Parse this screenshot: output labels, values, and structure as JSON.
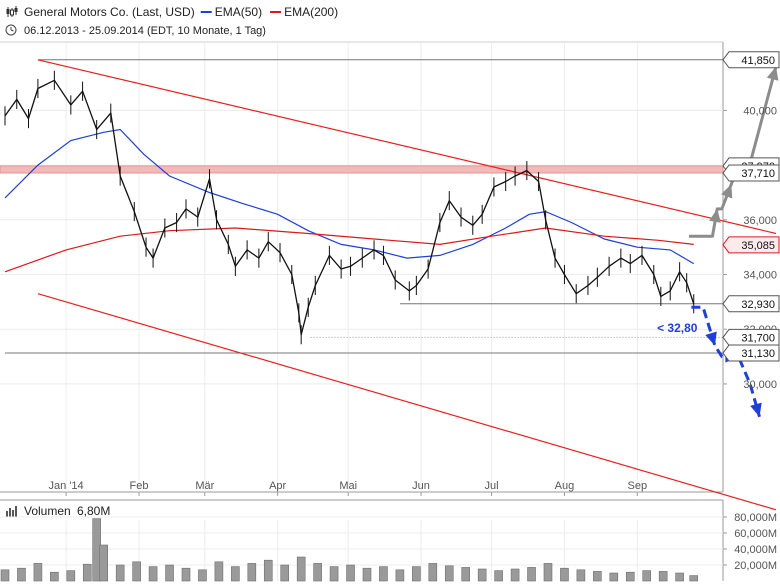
{
  "header": {
    "instrument": "General Motors Co. (Last, USD)",
    "ema50_label": "EMA(50)",
    "ema200_label": "EMA(200)",
    "period": "06.12.2013 - 25.09.2014 (EDT, 10 Monate, 1 Tag)"
  },
  "colors": {
    "price": "#111111",
    "ema50": "#1f3fd6",
    "ema200": "#d91a1a",
    "trendline": "#e82020",
    "resistance_zone": "#f4b8b8",
    "forecast_up": "#8c8c8c",
    "forecast_down": "#1f3fd6",
    "volume": "#9a9a9a"
  },
  "chart_data": [
    {
      "type": "line",
      "x_axis": {
        "ticks": [
          {
            "label": "Jan '14",
            "date": "2014-01-01"
          },
          {
            "label": "Feb",
            "date": "2014-02-01"
          },
          {
            "label": "Mär",
            "date": "2014-03-01"
          },
          {
            "label": "Apr",
            "date": "2014-04-01"
          },
          {
            "label": "Mai",
            "date": "2014-05-01"
          },
          {
            "label": "Jun",
            "date": "2014-06-01"
          },
          {
            "label": "Jul",
            "date": "2014-07-01"
          },
          {
            "label": "Aug",
            "date": "2014-08-01"
          },
          {
            "label": "Sep",
            "date": "2014-09-01"
          }
        ],
        "range": [
          "2013-12-06",
          "2014-10-30"
        ]
      },
      "y_axis": {
        "ticks": [
          {
            "label": "30,000",
            "value": 30
          },
          {
            "label": "32,000",
            "value": 32
          },
          {
            "label": "34,000",
            "value": 34
          },
          {
            "label": "36,000",
            "value": 36
          },
          {
            "label": "38,000",
            "value": 38
          },
          {
            "label": "40,000",
            "value": 40
          }
        ],
        "ylim": [
          27.0,
          42.5
        ],
        "position": "right"
      },
      "series": [
        {
          "name": "General Motors Co. (Last, USD)",
          "kind": "price",
          "points": [
            [
              "2013-12-06",
              39.8
            ],
            [
              "2013-12-11",
              40.4
            ],
            [
              "2013-12-16",
              39.7
            ],
            [
              "2013-12-20",
              40.8
            ],
            [
              "2013-12-27",
              41.1
            ],
            [
              "2014-01-03",
              40.2
            ],
            [
              "2014-01-08",
              40.7
            ],
            [
              "2014-01-14",
              39.3
            ],
            [
              "2014-01-20",
              39.9
            ],
            [
              "2014-01-24",
              37.6
            ],
            [
              "2014-01-30",
              36.3
            ],
            [
              "2014-02-04",
              35.0
            ],
            [
              "2014-02-07",
              34.6
            ],
            [
              "2014-02-12",
              35.7
            ],
            [
              "2014-02-17",
              35.9
            ],
            [
              "2014-02-21",
              36.4
            ],
            [
              "2014-02-26",
              36.1
            ],
            [
              "2014-03-03",
              37.5
            ],
            [
              "2014-03-06",
              36.0
            ],
            [
              "2014-03-11",
              35.1
            ],
            [
              "2014-03-14",
              34.3
            ],
            [
              "2014-03-19",
              34.9
            ],
            [
              "2014-03-24",
              34.6
            ],
            [
              "2014-03-28",
              35.2
            ],
            [
              "2014-04-02",
              34.8
            ],
            [
              "2014-04-07",
              34.0
            ],
            [
              "2014-04-10",
              32.6
            ],
            [
              "2014-04-11",
              31.8
            ],
            [
              "2014-04-14",
              32.8
            ],
            [
              "2014-04-17",
              33.6
            ],
            [
              "2014-04-23",
              34.7
            ],
            [
              "2014-04-28",
              34.2
            ],
            [
              "2014-05-02",
              34.3
            ],
            [
              "2014-05-07",
              34.6
            ],
            [
              "2014-05-12",
              34.9
            ],
            [
              "2014-05-16",
              34.7
            ],
            [
              "2014-05-21",
              33.8
            ],
            [
              "2014-05-27",
              33.4
            ],
            [
              "2014-05-30",
              33.6
            ],
            [
              "2014-06-04",
              34.2
            ],
            [
              "2014-06-09",
              35.9
            ],
            [
              "2014-06-13",
              36.7
            ],
            [
              "2014-06-18",
              36.1
            ],
            [
              "2014-06-23",
              35.8
            ],
            [
              "2014-06-27",
              36.2
            ],
            [
              "2014-07-02",
              37.2
            ],
            [
              "2014-07-07",
              37.4
            ],
            [
              "2014-07-11",
              37.6
            ],
            [
              "2014-07-16",
              37.8
            ],
            [
              "2014-07-21",
              37.4
            ],
            [
              "2014-07-24",
              36.0
            ],
            [
              "2014-07-28",
              34.6
            ],
            [
              "2014-08-01",
              34.0
            ],
            [
              "2014-08-06",
              33.3
            ],
            [
              "2014-08-11",
              33.6
            ],
            [
              "2014-08-15",
              33.9
            ],
            [
              "2014-08-20",
              34.3
            ],
            [
              "2014-08-25",
              34.6
            ],
            [
              "2014-08-29",
              34.4
            ],
            [
              "2014-09-03",
              34.7
            ],
            [
              "2014-09-08",
              34.0
            ],
            [
              "2014-09-11",
              33.2
            ],
            [
              "2014-09-15",
              33.4
            ],
            [
              "2014-09-19",
              34.1
            ],
            [
              "2014-09-22",
              33.7
            ],
            [
              "2014-09-25",
              32.93
            ]
          ]
        },
        {
          "name": "EMA(50)",
          "kind": "ema50",
          "points": [
            [
              "2013-12-06",
              36.8
            ],
            [
              "2013-12-20",
              38.0
            ],
            [
              "2014-01-03",
              38.9
            ],
            [
              "2014-01-17",
              39.2
            ],
            [
              "2014-01-24",
              39.3
            ],
            [
              "2014-02-03",
              38.4
            ],
            [
              "2014-02-14",
              37.6
            ],
            [
              "2014-03-03",
              37.0
            ],
            [
              "2014-03-17",
              36.6
            ],
            [
              "2014-04-01",
              36.2
            ],
            [
              "2014-04-14",
              35.6
            ],
            [
              "2014-04-28",
              35.1
            ],
            [
              "2014-05-12",
              34.9
            ],
            [
              "2014-05-26",
              34.6
            ],
            [
              "2014-06-09",
              34.7
            ],
            [
              "2014-06-23",
              35.1
            ],
            [
              "2014-07-07",
              35.7
            ],
            [
              "2014-07-17",
              36.2
            ],
            [
              "2014-07-24",
              36.3
            ],
            [
              "2014-08-04",
              35.9
            ],
            [
              "2014-08-18",
              35.3
            ],
            [
              "2014-09-01",
              35.0
            ],
            [
              "2014-09-15",
              34.9
            ],
            [
              "2014-09-25",
              34.4
            ]
          ]
        },
        {
          "name": "EMA(200)",
          "kind": "ema200",
          "points": [
            [
              "2013-12-06",
              34.1
            ],
            [
              "2014-01-01",
              34.9
            ],
            [
              "2014-01-24",
              35.4
            ],
            [
              "2014-02-14",
              35.6
            ],
            [
              "2014-03-14",
              35.7
            ],
            [
              "2014-04-14",
              35.5
            ],
            [
              "2014-05-12",
              35.3
            ],
            [
              "2014-06-09",
              35.1
            ],
            [
              "2014-07-01",
              35.4
            ],
            [
              "2014-07-24",
              35.7
            ],
            [
              "2014-08-18",
              35.4
            ],
            [
              "2014-09-10",
              35.25
            ],
            [
              "2014-09-25",
              35.1
            ]
          ]
        }
      ],
      "trendlines": [
        {
          "name": "upper-trendline",
          "from": [
            "2013-12-20",
            41.85
          ],
          "to": [
            "2014-10-30",
            35.5
          ]
        },
        {
          "name": "lower-trendline",
          "from": [
            "2013-12-20",
            33.3
          ],
          "to": [
            "2014-10-30",
            25.4
          ]
        }
      ],
      "reference_lines": [
        {
          "name": "level-41850",
          "value": 41.85,
          "style": "solid",
          "from": "2013-12-20"
        },
        {
          "name": "level-32930",
          "value": 32.93,
          "style": "solid",
          "from": "2014-05-23"
        },
        {
          "name": "level-31700",
          "value": 31.7,
          "style": "dotted",
          "from": "2014-04-15"
        },
        {
          "name": "level-31130",
          "value": 31.13,
          "style": "solid",
          "from": "2013-12-06"
        }
      ],
      "resistance_zone": {
        "low": 37.71,
        "high": 37.97
      },
      "price_labels": [
        {
          "label": "41,850",
          "value": 41.85,
          "style": "plain"
        },
        {
          "label": "37,970",
          "value": 37.97,
          "style": "plain"
        },
        {
          "label": "37,710",
          "value": 37.71,
          "style": "plain"
        },
        {
          "label": "35,085",
          "value": 35.085,
          "style": "red"
        },
        {
          "label": "32,930",
          "value": 32.93,
          "style": "plain"
        },
        {
          "label": "31,700",
          "value": 31.7,
          "style": "plain"
        },
        {
          "label": "31,130",
          "value": 31.13,
          "style": "plain"
        }
      ],
      "annotations": [
        {
          "text": "< 32,80",
          "date": "2014-09-18",
          "value": 32.05
        }
      ],
      "forecast_up": [
        [
          "2014-09-23",
          35.4
        ],
        [
          "2014-10-03",
          35.4
        ],
        [
          "2014-10-05",
          36.4
        ],
        [
          "2014-10-07",
          36.4
        ],
        [
          "2014-10-11",
          37.3
        ],
        [
          "2014-10-13",
          37.75
        ],
        [
          "2014-10-18",
          37.75
        ],
        [
          "2014-10-30",
          41.6
        ]
      ],
      "forecast_down": [
        [
          "2014-09-24",
          32.8
        ],
        [
          "2014-09-29",
          32.8
        ],
        [
          "2014-10-04",
          31.4
        ],
        [
          "2014-10-07",
          31.0
        ],
        [
          "2014-10-14",
          31.0
        ],
        [
          "2014-10-19",
          30.0
        ],
        [
          "2014-10-23",
          28.8
        ]
      ]
    },
    {
      "type": "bar",
      "title": "Volumen",
      "current_value": "6,80M",
      "y_axis": {
        "ticks": [
          {
            "label": "20,000M",
            "value": 20
          },
          {
            "label": "40,000M",
            "value": 40
          },
          {
            "label": "60,000M",
            "value": 60
          },
          {
            "label": "80,000M",
            "value": 80
          }
        ],
        "ylim": [
          0,
          90
        ],
        "position": "right",
        "unit": "M"
      },
      "values": [
        {
          "date": "2013-12-06",
          "value": 14
        },
        {
          "date": "2013-12-13",
          "value": 16
        },
        {
          "date": "2013-12-20",
          "value": 22
        },
        {
          "date": "2013-12-27",
          "value": 11
        },
        {
          "date": "2014-01-03",
          "value": 13
        },
        {
          "date": "2014-01-10",
          "value": 21
        },
        {
          "date": "2014-01-14",
          "value": 78
        },
        {
          "date": "2014-01-17",
          "value": 45
        },
        {
          "date": "2014-01-24",
          "value": 20
        },
        {
          "date": "2014-01-31",
          "value": 24
        },
        {
          "date": "2014-02-07",
          "value": 18
        },
        {
          "date": "2014-02-14",
          "value": 20
        },
        {
          "date": "2014-02-21",
          "value": 16
        },
        {
          "date": "2014-02-28",
          "value": 14
        },
        {
          "date": "2014-03-07",
          "value": 24
        },
        {
          "date": "2014-03-14",
          "value": 18
        },
        {
          "date": "2014-03-21",
          "value": 22
        },
        {
          "date": "2014-03-28",
          "value": 26
        },
        {
          "date": "2014-04-04",
          "value": 20
        },
        {
          "date": "2014-04-11",
          "value": 30
        },
        {
          "date": "2014-04-18",
          "value": 22
        },
        {
          "date": "2014-04-25",
          "value": 18
        },
        {
          "date": "2014-05-02",
          "value": 20
        },
        {
          "date": "2014-05-09",
          "value": 16
        },
        {
          "date": "2014-05-16",
          "value": 18
        },
        {
          "date": "2014-05-23",
          "value": 14
        },
        {
          "date": "2014-05-30",
          "value": 18
        },
        {
          "date": "2014-06-06",
          "value": 22
        },
        {
          "date": "2014-06-13",
          "value": 19
        },
        {
          "date": "2014-06-20",
          "value": 17
        },
        {
          "date": "2014-06-27",
          "value": 15
        },
        {
          "date": "2014-07-04",
          "value": 13
        },
        {
          "date": "2014-07-11",
          "value": 15
        },
        {
          "date": "2014-07-18",
          "value": 17
        },
        {
          "date": "2014-07-25",
          "value": 22
        },
        {
          "date": "2014-08-01",
          "value": 16
        },
        {
          "date": "2014-08-08",
          "value": 14
        },
        {
          "date": "2014-08-15",
          "value": 12
        },
        {
          "date": "2014-08-22",
          "value": 10
        },
        {
          "date": "2014-08-29",
          "value": 11
        },
        {
          "date": "2014-09-05",
          "value": 13
        },
        {
          "date": "2014-09-12",
          "value": 12
        },
        {
          "date": "2014-09-19",
          "value": 10
        },
        {
          "date": "2014-09-25",
          "value": 6.8
        }
      ]
    }
  ]
}
